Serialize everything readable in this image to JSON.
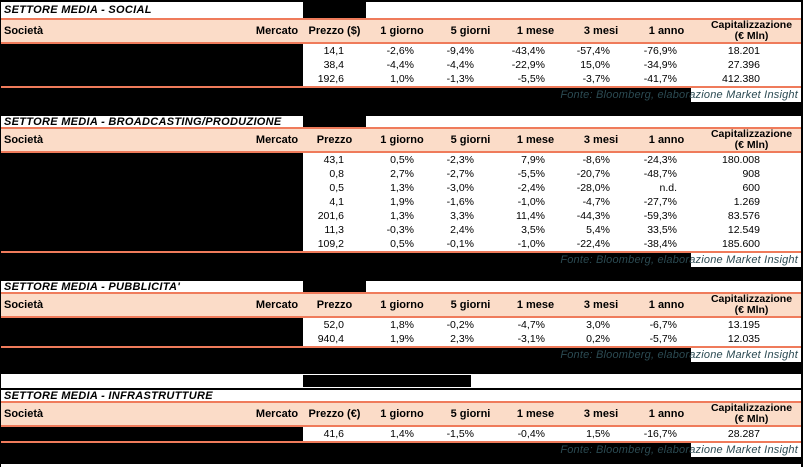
{
  "report": {
    "source_note": "Fonte: Bloomberg, elaborazione Market Insight",
    "colors": {
      "header_background": "#FBDCC8",
      "accent_border": "#EF7B5B",
      "redaction": "#000000",
      "source_text": "#2B4A52"
    },
    "sections": [
      {
        "title": "SETTORE MEDIA - SOCIAL",
        "headers": {
          "societa": "Società",
          "mercato": "Mercato",
          "prezzo": "Prezzo ($)",
          "giorno1": "1 giorno",
          "giorni5": "5 giorni",
          "mese1": "1 mese",
          "mesi3": "3 mesi",
          "anno1": "1 anno",
          "cap1": "Capitalizzazione",
          "cap2": "(€ Mln)"
        },
        "rows": [
          [
            "14,1",
            "-2,6%",
            "-9,4%",
            "-43,4%",
            "-57,4%",
            "-76,9%",
            "18.201"
          ],
          [
            "38,4",
            "-4,4%",
            "-4,4%",
            "-22,9%",
            "15,0%",
            "-34,9%",
            "27.396"
          ],
          [
            "192,6",
            "1,0%",
            "-1,3%",
            "-5,5%",
            "-3,7%",
            "-41,7%",
            "412.380"
          ]
        ]
      },
      {
        "title": "SETTORE MEDIA - BROADCASTING/PRODUZIONE",
        "headers": {
          "societa": "Società",
          "mercato": "Mercato",
          "prezzo": "Prezzo",
          "giorno1": "1 giorno",
          "giorni5": "5 giorni",
          "mese1": "1 mese",
          "mesi3": "3 mesi",
          "anno1": "1 anno",
          "cap1": "Capitalizzazione",
          "cap2": "(€ Mln)"
        },
        "rows": [
          [
            "43,1",
            "0,5%",
            "-2,3%",
            "7,9%",
            "-8,6%",
            "-24,3%",
            "180.008"
          ],
          [
            "0,8",
            "2,7%",
            "-2,7%",
            "-5,5%",
            "-20,7%",
            "-48,7%",
            "908"
          ],
          [
            "0,5",
            "1,3%",
            "-3,0%",
            "-2,4%",
            "-28,0%",
            "n.d.",
            "600"
          ],
          [
            "4,1",
            "1,9%",
            "-1,6%",
            "-1,0%",
            "-4,7%",
            "-27,7%",
            "1.269"
          ],
          [
            "201,6",
            "1,3%",
            "3,3%",
            "11,4%",
            "-44,3%",
            "-59,3%",
            "83.576"
          ],
          [
            "11,3",
            "-0,3%",
            "2,4%",
            "3,5%",
            "5,4%",
            "33,5%",
            "12.549"
          ],
          [
            "109,2",
            "0,5%",
            "-0,1%",
            "-1,0%",
            "-22,4%",
            "-38,4%",
            "185.600"
          ]
        ]
      },
      {
        "title": "SETTORE MEDIA - PUBBLICITA'",
        "headers": {
          "societa": "Società",
          "mercato": "Mercato",
          "prezzo": "Prezzo",
          "giorno1": "1 giorno",
          "giorni5": "5 giorni",
          "mese1": "1 mese",
          "mesi3": "3 mesi",
          "anno1": "1 anno",
          "cap1": "Capitalizzazione",
          "cap2": "(€ Mln)"
        },
        "rows": [
          [
            "52,0",
            "1,8%",
            "-0,2%",
            "-4,7%",
            "3,0%",
            "-6,7%",
            "13.195"
          ],
          [
            "940,4",
            "1,9%",
            "2,3%",
            "-3,1%",
            "0,2%",
            "-5,7%",
            "12.035"
          ]
        ]
      },
      {
        "title": "SETTORE MEDIA - INFRASTRUTTURE",
        "headers": {
          "societa": "Società",
          "mercato": "Mercato",
          "prezzo": "Prezzo (€)",
          "giorno1": "1 giorno",
          "giorni5": "5 giorni",
          "mese1": "1 mese",
          "mesi3": "3 mesi",
          "anno1": "1 anno",
          "cap1": "Capitalizzazione",
          "cap2": "(€ Mln)"
        },
        "rows": [
          [
            "41,6",
            "1,4%",
            "-1,5%",
            "-0,4%",
            "1,5%",
            "-16,7%",
            "28.287"
          ]
        ]
      }
    ]
  }
}
